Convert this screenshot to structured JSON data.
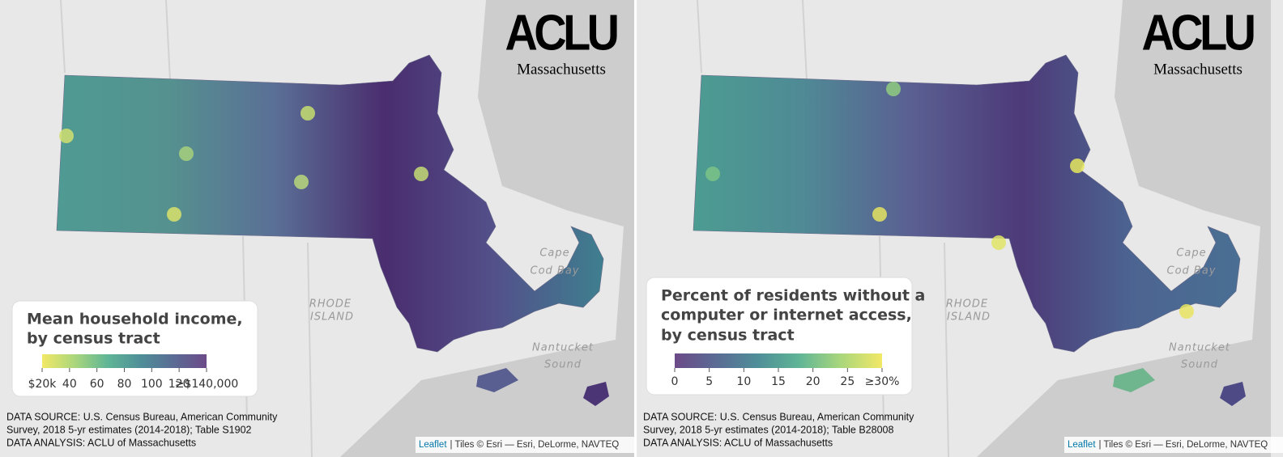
{
  "panels": [
    {
      "logo": {
        "name": "ACLU",
        "region": "Massachusetts"
      },
      "legend": {
        "title": [
          "Mean household income,",
          "by census tract"
        ],
        "colors": [
          "#f2e866",
          "#a9d67c",
          "#5fb596",
          "#4f8e98",
          "#5a6b94",
          "#6c4a88"
        ],
        "lim": [
          20,
          140
        ],
        "ticks": [
          {
            "value": 20,
            "label": "$20k"
          },
          40,
          60,
          80,
          100,
          120,
          {
            "value": 140,
            "label": "≥$140,000"
          }
        ]
      },
      "place_labels": [
        "Cape",
        "Cod Bay",
        "Nantucket",
        "Sound",
        "RHODE",
        "ISLAND"
      ],
      "source": [
        "DATA SOURCE: U.S. Census Bureau, American Community",
        "Survey, 2018 5-yr estimates (2014-2018); Table S1902",
        "DATA ANALYSIS: ACLU of Massachusetts"
      ],
      "attribution": {
        "link": "Leaflet",
        "text": "| Tiles © Esri — Esri, DeLorme, NAVTEQ"
      }
    },
    {
      "logo": {
        "name": "ACLU",
        "region": "Massachusetts"
      },
      "legend": {
        "title": [
          "Percent of residents without a",
          "computer or internet access,",
          "by census tract"
        ],
        "colors": [
          "#6c4a88",
          "#5a6b94",
          "#4f8e98",
          "#5fb596",
          "#a9d67c",
          "#f2e866"
        ],
        "lim": [
          0,
          30
        ],
        "ticks": [
          0,
          5,
          10,
          15,
          20,
          25,
          {
            "value": 30,
            "label": "≥30%"
          }
        ]
      },
      "place_labels": [
        "Cape",
        "Cod Bay",
        "Nantucket",
        "Sound",
        "RHODE",
        "ISLAND"
      ],
      "source": [
        "DATA SOURCE: U.S. Census Bureau, American Community",
        "Survey, 2018 5-yr estimates (2014-2018); Table B28008",
        "DATA ANALYSIS: ACLU of Massachusetts"
      ],
      "attribution": {
        "link": "Leaflet",
        "text": "| Tiles © Esri — Esri, DeLorme, NAVTEQ"
      }
    }
  ]
}
